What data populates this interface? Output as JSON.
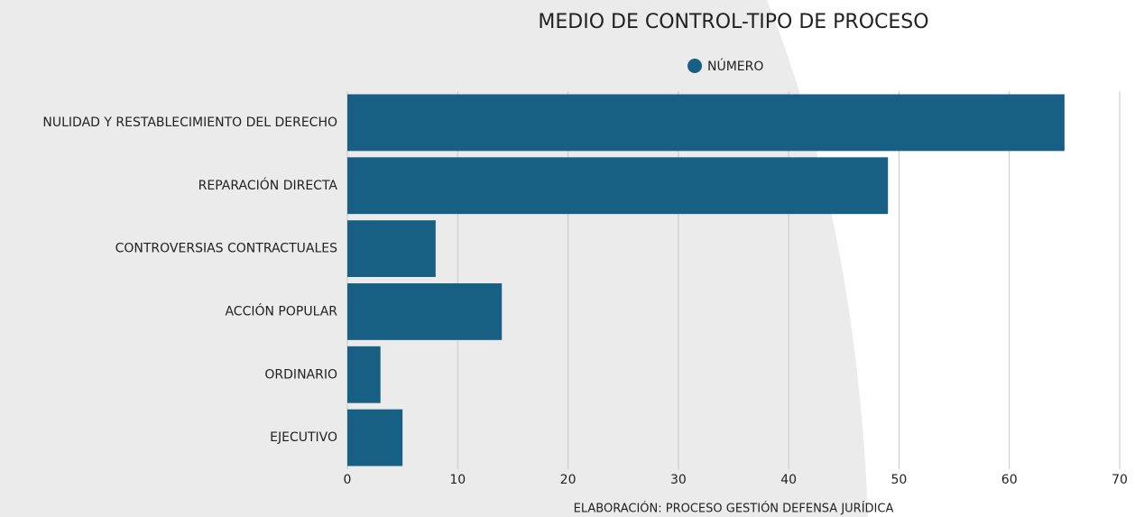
{
  "chart_data": {
    "type": "hbar",
    "title": "MEDIO DE CONTROL-TIPO DE PROCESO",
    "caption": "ELABORACIÓN: PROCESO GESTIÓN DEFENSA JURÍDICA",
    "categories": [
      "NULIDAD Y RESTABLECIMIENTO DEL DERECHO",
      "REPARACIÓN DIRECTA",
      "CONTROVERSIAS CONTRACTUALES",
      "ACCIÓN POPULAR",
      "ORDINARIO",
      "EJECUTIVO"
    ],
    "series": [
      {
        "name": "NÚMERO",
        "color": "#175f83",
        "values": [
          65,
          49,
          8,
          14,
          3,
          5
        ]
      }
    ],
    "xlim": [
      0,
      70
    ],
    "xticks": [
      0,
      10,
      20,
      30,
      40,
      50,
      60,
      70
    ],
    "grid": true,
    "legend": "top"
  }
}
